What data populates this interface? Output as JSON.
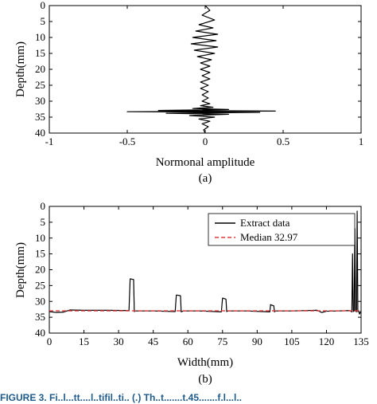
{
  "chart_data": [
    {
      "type": "line",
      "panel_label": "(a)",
      "xlabel": "Normonal amplitude",
      "ylabel": "Depth(mm)",
      "xlim": [
        -1,
        1
      ],
      "ylim": [
        0,
        40
      ],
      "y_inverted": true,
      "xticks": [
        "-1",
        "-0.5",
        "0",
        "0.5",
        "1"
      ],
      "yticks": [
        "0",
        "5",
        "10",
        "15",
        "20",
        "25",
        "30",
        "35",
        "40"
      ],
      "grid": false,
      "legend": null,
      "series": [
        {
          "color": "#000000",
          "x": [
            0.0,
            0.03,
            -0.02,
            0.06,
            -0.04,
            0.05,
            -0.06,
            0.08,
            -0.08,
            0.07,
            -0.09,
            0.08,
            -0.07,
            0.06,
            -0.05,
            0.04,
            -0.03,
            0.03,
            -0.03,
            0.03,
            -0.02,
            0.03,
            -0.03,
            0.02,
            -0.03,
            0.02,
            -0.02,
            0.02,
            -0.02,
            0.03,
            -0.03,
            0.05,
            -0.08,
            0.15,
            -0.3,
            0.45,
            -0.5,
            0.35,
            -0.25,
            0.15,
            -0.1,
            0.06,
            -0.04,
            0.03,
            -0.02,
            0.02,
            -0.01,
            0.0
          ],
          "y": [
            0,
            1.5,
            3,
            4.5,
            6,
            7,
            8,
            9,
            10,
            11,
            12,
            13,
            14,
            15,
            16,
            17,
            18,
            19,
            20,
            21,
            22,
            23,
            24,
            25,
            26,
            27,
            28,
            29,
            30,
            30.8,
            31.4,
            31.9,
            32.3,
            32.6,
            32.9,
            33.1,
            33.3,
            33.5,
            33.8,
            34.1,
            34.5,
            35,
            35.6,
            36.3,
            37.1,
            38,
            39,
            40
          ]
        }
      ]
    },
    {
      "type": "line",
      "panel_label": "(b)",
      "xlabel": "Width(mm)",
      "ylabel": "Depth(mm)",
      "xlim": [
        0,
        135
      ],
      "ylim": [
        0,
        40
      ],
      "y_inverted": true,
      "xticks": [
        "0",
        "15",
        "30",
        "45",
        "60",
        "75",
        "90",
        "105",
        "120",
        "135"
      ],
      "yticks": [
        "0",
        "5",
        "10",
        "15",
        "20",
        "25",
        "30",
        "35",
        "40"
      ],
      "grid": false,
      "legend": {
        "position": "top-right"
      },
      "series": [
        {
          "name": "Extract data",
          "color": "#000000",
          "style": "solid",
          "x": [
            0,
            3,
            6,
            9,
            15,
            25,
            34.5,
            35,
            35.3,
            36.5,
            36.8,
            37.5,
            45,
            54.5,
            55,
            55.3,
            56.8,
            57.1,
            58,
            65,
            74.5,
            75,
            75.3,
            76.5,
            76.8,
            77.5,
            85,
            95.5,
            95.8,
            96,
            97.2,
            97.5,
            98,
            105,
            116,
            118,
            120,
            125,
            130,
            131,
            131.3,
            131.6,
            132,
            132.3,
            132.6,
            133,
            133.3,
            133.6,
            134,
            134.3,
            135
          ],
          "y": [
            33.2,
            33.5,
            33.4,
            32.7,
            32.8,
            32.8,
            32.9,
            22.9,
            22.9,
            23.1,
            33.2,
            33.0,
            33.0,
            33.2,
            28.0,
            28.0,
            28.2,
            33.3,
            33.0,
            33.0,
            33.3,
            29.0,
            29.0,
            29.3,
            33.2,
            33.0,
            33.0,
            33.3,
            31.0,
            31.1,
            31.4,
            33.3,
            33.0,
            33.0,
            32.8,
            33.5,
            33.1,
            33.0,
            32.9,
            33.3,
            15.0,
            33.2,
            33.0,
            7.0,
            33.0,
            33.3,
            1.5,
            33.2,
            33.0,
            34.0,
            33.0
          ]
        },
        {
          "name": "Median 32.97",
          "color": "#e03a3a",
          "style": "dashed",
          "x": [
            0,
            135
          ],
          "y": [
            32.97,
            32.97
          ]
        }
      ]
    }
  ],
  "caption": {
    "text": "FIGURE 3.  Fi..l...tt....l..tifil..ti..  (.)  Th..t.......t.45.......f.l...l.."
  }
}
